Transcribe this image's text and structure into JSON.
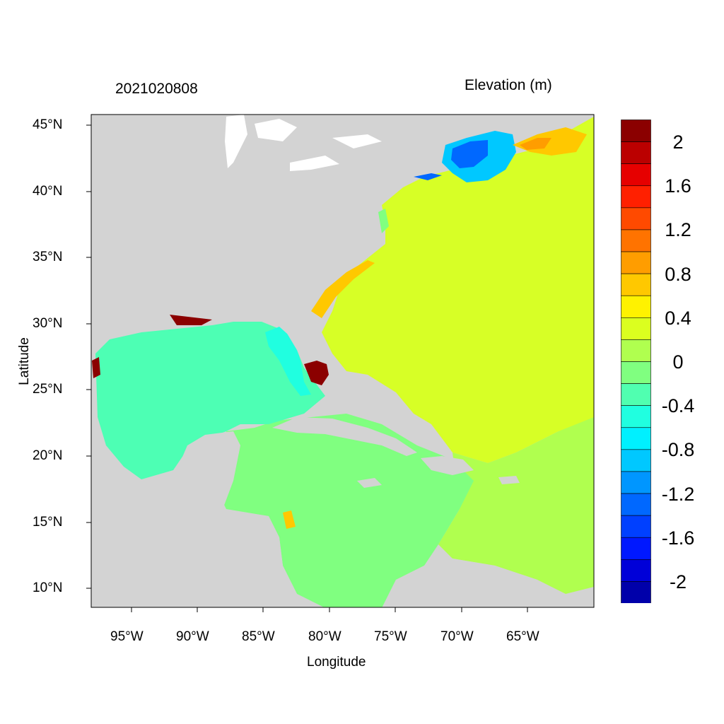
{
  "header": {
    "timestamp": "2021020808",
    "variable": "Elevation (m)"
  },
  "axes": {
    "xlabel": "Longitude",
    "ylabel": "Latitude",
    "x_ticks": [
      "95°W",
      "90°W",
      "85°W",
      "80°W",
      "75°W",
      "70°W",
      "65°W"
    ],
    "y_ticks": [
      "45°N",
      "40°N",
      "35°N",
      "30°N",
      "25°N",
      "20°N",
      "15°N",
      "10°N"
    ]
  },
  "colorbar": {
    "labels": [
      "2",
      "1.6",
      "1.2",
      "0.8",
      "0.4",
      "0",
      "-0.4",
      "-0.8",
      "-1.2",
      "-1.6",
      "-2"
    ],
    "colors": [
      "#8b0000",
      "#bb0000",
      "#e60000",
      "#ff2000",
      "#ff4a00",
      "#ff7300",
      "#ff9d00",
      "#ffc800",
      "#fff200",
      "#dbff1f",
      "#b0ff4f",
      "#80ff80",
      "#50ffb0",
      "#20ffe0",
      "#00f0ff",
      "#00c8ff",
      "#0096ff",
      "#0068ff",
      "#0040ff",
      "#0018ff",
      "#0000d8",
      "#0000aa"
    ]
  },
  "colors": {
    "land": "#d3d3d3",
    "ocean_atlantic": "#d7ff26",
    "gulf": "#4dffb4",
    "caribbean": "#80ff80",
    "coastal_surge_high": "#8b0000",
    "coastal_setup": "#ffc800",
    "gulf_of_maine_low": "#0068ff"
  }
}
